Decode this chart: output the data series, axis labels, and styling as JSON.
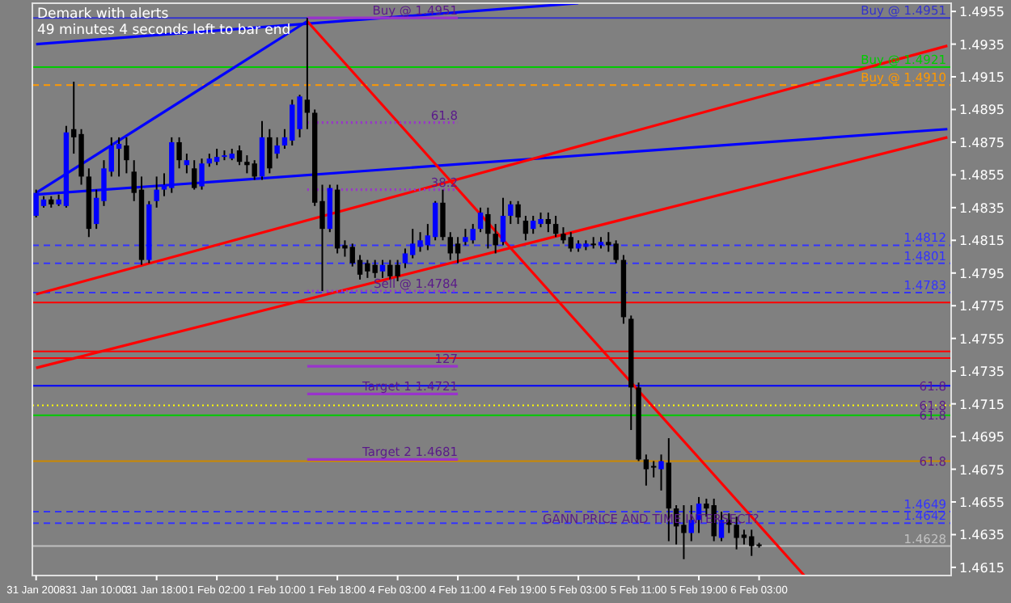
{
  "chart_data": {
    "type": "candlestick",
    "annotations": [
      "Demark with alerts",
      "49 minutes 4 seconds left to bar end",
      {
        "text": "Buy @ 1.4951",
        "x": "4 Feb 11:00",
        "y": 1.4951
      },
      {
        "text": "61.8",
        "x": "4 Feb 11:00",
        "y": 1.4887
      },
      {
        "text": "38.2",
        "x": "4 Feb 11:00",
        "y": 1.4846
      },
      {
        "text": "Sell @ 1.4784",
        "x": "4 Feb 11:00",
        "y": 1.4784
      },
      {
        "text": "127",
        "x": "4 Feb 11:00",
        "y": 1.4738
      },
      {
        "text": "Target 1   1.4721",
        "x": "4 Feb 11:00",
        "y": 1.4721
      },
      {
        "text": "Target 2   1.4681",
        "x": "4 Feb 11:00",
        "y": 1.4681
      },
      {
        "text": "61.8",
        "y": 1.4726
      },
      {
        "text": "61.8",
        "y": 1.4714
      },
      {
        "text": "61.8",
        "y": 1.4708
      },
      {
        "text": "61.8",
        "y": 1.468
      },
      {
        "text": "GANN PRICE AND TIME INTERSECT?",
        "x": "6 Feb 03:00",
        "y": 1.464
      }
    ],
    "categories": [
      "31 Jan 2008",
      null,
      null,
      null,
      null,
      null,
      null,
      null,
      "31 Jan 10:00",
      null,
      null,
      null,
      null,
      null,
      null,
      null,
      "31 Jan 18:00",
      null,
      null,
      null,
      null,
      null,
      null,
      null,
      "1 Feb 02:00",
      null,
      null,
      null,
      null,
      null,
      null,
      null,
      "1 Feb 10:00",
      null,
      null,
      null,
      null,
      null,
      null,
      null,
      "1 Feb 18:00",
      null,
      null,
      null,
      null,
      null,
      null,
      null,
      "4 Feb 03:00",
      null,
      null,
      null,
      null,
      null,
      null,
      null,
      "4 Feb 11:00",
      null,
      null,
      null,
      null,
      null,
      null,
      null,
      "4 Feb 19:00",
      null,
      null,
      null,
      null,
      null,
      null,
      null,
      "5 Feb 03:00",
      null,
      null,
      null,
      null,
      null,
      null,
      null,
      "5 Feb 11:00",
      null,
      null,
      null,
      null,
      null,
      null,
      null,
      "5 Feb 19:00",
      null,
      null,
      null,
      null,
      null,
      null,
      null,
      "6 Feb 03:00",
      null,
      null,
      null,
      null,
      null,
      null,
      null,
      null,
      null,
      null,
      null,
      null,
      null,
      null,
      null,
      null,
      null,
      null,
      null,
      null,
      null,
      null,
      null,
      null,
      null
    ],
    "ohlc": [
      [
        1.483,
        1.4846,
        1.4829,
        1.4844
      ],
      [
        1.4836,
        1.4842,
        1.4835,
        1.484
      ],
      [
        1.484,
        1.4842,
        1.4835,
        1.4837
      ],
      [
        1.4837,
        1.4843,
        1.4836,
        1.484
      ],
      [
        1.4836,
        1.4885,
        1.4835,
        1.4881
      ],
      [
        1.4883,
        1.4912,
        1.4868,
        1.4878
      ],
      [
        1.488,
        1.4883,
        1.4849,
        1.4854
      ],
      [
        1.4854,
        1.4859,
        1.4817,
        1.4822
      ],
      [
        1.4825,
        1.4846,
        1.4822,
        1.4841
      ],
      [
        1.4839,
        1.4864,
        1.4836,
        1.4859
      ],
      [
        1.4857,
        1.4878,
        1.4854,
        1.4873
      ],
      [
        1.4871,
        1.4878,
        1.4854,
        1.4874
      ],
      [
        1.4873,
        1.4878,
        1.4856,
        1.4864
      ],
      [
        1.4857,
        1.4864,
        1.4839,
        1.4844
      ],
      [
        1.4846,
        1.4854,
        1.48,
        1.4803
      ],
      [
        1.4803,
        1.4839,
        1.4801,
        1.4837
      ],
      [
        1.4839,
        1.4854,
        1.4835,
        1.4846
      ],
      [
        1.4846,
        1.4856,
        1.4842,
        1.4849
      ],
      [
        1.4847,
        1.4878,
        1.4844,
        1.4875
      ],
      [
        1.4875,
        1.4878,
        1.4859,
        1.4864
      ],
      [
        1.4861,
        1.4868,
        1.4856,
        1.4864
      ],
      [
        1.4859,
        1.4864,
        1.4846,
        1.4847
      ],
      [
        1.4848,
        1.4865,
        1.4846,
        1.4862
      ],
      [
        1.4862,
        1.4868,
        1.486,
        1.4865
      ],
      [
        1.4863,
        1.4871,
        1.4861,
        1.4866
      ],
      [
        1.4866,
        1.487,
        1.4864,
        1.4867
      ],
      [
        1.4865,
        1.4871,
        1.4864,
        1.4868
      ],
      [
        1.487,
        1.4873,
        1.4861,
        1.4863
      ],
      [
        1.4863,
        1.4867,
        1.4856,
        1.4861
      ],
      [
        1.4862,
        1.4864,
        1.4852,
        1.4854
      ],
      [
        1.4854,
        1.4888,
        1.4852,
        1.4878
      ],
      [
        1.4878,
        1.4883,
        1.4856,
        1.4859
      ],
      [
        1.4868,
        1.4878,
        1.4865,
        1.4873
      ],
      [
        1.4873,
        1.4883,
        1.4871,
        1.4878
      ],
      [
        1.4876,
        1.4901,
        1.4873,
        1.4898
      ],
      [
        1.4883,
        1.4904,
        1.4878,
        1.4903
      ],
      [
        1.4901,
        1.4951,
        1.4883,
        1.4893
      ],
      [
        1.4893,
        1.4895,
        1.4836,
        1.4838
      ],
      [
        1.4839,
        1.4849,
        1.4784,
        1.4822
      ],
      [
        1.4822,
        1.4849,
        1.482,
        1.4847
      ],
      [
        1.4846,
        1.4849,
        1.4807,
        1.481
      ],
      [
        1.4812,
        1.4815,
        1.4805,
        1.481
      ],
      [
        1.4811,
        1.4813,
        1.4799,
        1.4801
      ],
      [
        1.4803,
        1.4806,
        1.4791,
        1.4794
      ],
      [
        1.4801,
        1.4803,
        1.4792,
        1.4796
      ],
      [
        1.48,
        1.4803,
        1.4792,
        1.4795
      ],
      [
        1.4796,
        1.4803,
        1.4792,
        1.48
      ],
      [
        1.48,
        1.4803,
        1.4791,
        1.4793
      ],
      [
        1.48,
        1.4803,
        1.479,
        1.4793
      ],
      [
        1.4801,
        1.481,
        1.4798,
        1.4807
      ],
      [
        1.4806,
        1.4822,
        1.4804,
        1.4813
      ],
      [
        1.4811,
        1.482,
        1.4808,
        1.4815
      ],
      [
        1.4812,
        1.4825,
        1.4809,
        1.4818
      ],
      [
        1.4817,
        1.4839,
        1.4815,
        1.4838
      ],
      [
        1.4838,
        1.4846,
        1.4815,
        1.4817
      ],
      [
        1.4817,
        1.482,
        1.4803,
        1.4807
      ],
      [
        1.4813,
        1.4817,
        1.4801,
        1.4807
      ],
      [
        1.4814,
        1.4822,
        1.4812,
        1.4817
      ],
      [
        1.4815,
        1.4825,
        1.4813,
        1.4822
      ],
      [
        1.4822,
        1.4835,
        1.482,
        1.4832
      ],
      [
        1.4831,
        1.4835,
        1.481,
        1.4819
      ],
      [
        1.4819,
        1.4825,
        1.4807,
        1.4812
      ],
      [
        1.4814,
        1.4841,
        1.4812,
        1.483
      ],
      [
        1.483,
        1.4839,
        1.4825,
        1.4837
      ],
      [
        1.4837,
        1.4839,
        1.4825,
        1.4829
      ],
      [
        1.4827,
        1.483,
        1.4815,
        1.4819
      ],
      [
        1.4822,
        1.483,
        1.4819,
        1.4827
      ],
      [
        1.4825,
        1.4832,
        1.4823,
        1.4828
      ],
      [
        1.4828,
        1.4832,
        1.482,
        1.4825
      ],
      [
        1.4825,
        1.483,
        1.4817,
        1.4819
      ],
      [
        1.4819,
        1.4823,
        1.4813,
        1.4815
      ],
      [
        1.4817,
        1.482,
        1.4808,
        1.481
      ],
      [
        1.481,
        1.4815,
        1.4808,
        1.4813
      ],
      [
        1.4811,
        1.4815,
        1.4809,
        1.4813
      ],
      [
        1.4813,
        1.4817,
        1.481,
        1.4812
      ],
      [
        1.4812,
        1.4817,
        1.481,
        1.4814
      ],
      [
        1.4814,
        1.482,
        1.4808,
        1.4812
      ],
      [
        1.4813,
        1.4815,
        1.4801,
        1.4803
      ],
      [
        1.4803,
        1.4806,
        1.4764,
        1.4768
      ],
      [
        1.4767,
        1.4769,
        1.4699,
        1.4725
      ],
      [
        1.4725,
        1.4728,
        1.468,
        1.4681
      ],
      [
        1.4681,
        1.4684,
        1.4665,
        1.4675
      ],
      [
        1.4677,
        1.468,
        1.467,
        1.4676
      ],
      [
        1.4675,
        1.4684,
        1.4662,
        1.468
      ],
      [
        1.4679,
        1.4694,
        1.4631,
        1.4651
      ],
      [
        1.4651,
        1.4653,
        1.4629,
        1.464
      ],
      [
        1.4641,
        1.4653,
        1.462,
        1.4636
      ],
      [
        1.4636,
        1.4653,
        1.4631,
        1.4644
      ],
      [
        1.4644,
        1.4658,
        1.4636,
        1.4654
      ],
      [
        1.4654,
        1.4657,
        1.4646,
        1.4651
      ],
      [
        1.4653,
        1.4657,
        1.4631,
        1.4634
      ],
      [
        1.4633,
        1.4649,
        1.4631,
        1.4644
      ],
      [
        1.4644,
        1.4648,
        1.4636,
        1.4641
      ],
      [
        1.4641,
        1.4646,
        1.4626,
        1.4633
      ],
      [
        1.4635,
        1.4638,
        1.4629,
        1.4633
      ],
      [
        1.4634,
        1.4638,
        1.4622,
        1.4628
      ],
      [
        1.4629,
        1.463,
        1.4627,
        1.4628
      ],
      null,
      null,
      null,
      null,
      null,
      null,
      null,
      null,
      null,
      null,
      null,
      null,
      null,
      null,
      null,
      null,
      null,
      null,
      null,
      null,
      null,
      null,
      null,
      null,
      null
    ],
    "series": [
      {
        "type": "line",
        "color": "#0000ff",
        "values": [
          1.4935,
          null,
          null,
          null,
          null,
          null,
          null,
          null,
          null,
          null,
          null,
          null,
          null,
          null,
          null,
          null,
          null,
          null,
          null,
          null,
          null,
          null,
          null,
          null,
          null,
          null,
          null,
          null,
          null,
          null,
          null,
          null,
          null,
          null,
          null,
          null,
          null,
          null,
          null,
          null,
          null,
          null,
          null,
          null,
          null,
          null,
          null,
          null,
          null,
          null,
          null,
          null,
          null,
          null,
          null,
          null,
          null,
          null,
          null,
          null,
          null,
          null,
          null,
          null,
          null,
          null,
          null,
          null,
          null,
          null,
          null,
          null,
          1.496,
          null,
          null,
          null,
          null,
          null,
          null,
          null,
          null,
          null,
          null,
          null,
          null,
          null,
          null,
          null,
          null,
          null,
          null,
          null,
          null,
          null,
          null,
          null,
          null,
          null,
          null,
          null,
          null,
          null,
          null,
          null,
          null,
          null,
          null,
          null,
          null,
          null,
          null,
          null,
          null,
          null,
          null,
          null,
          null,
          null,
          null,
          null,
          null,
          null
        ]
      },
      {
        "type": "line",
        "color": "#0000ff",
        "values": [
          1.4844,
          null,
          null,
          null,
          null,
          null,
          null,
          null,
          null,
          null,
          null,
          null,
          null,
          null,
          null,
          null,
          null,
          null,
          null,
          null,
          null,
          null,
          null,
          null,
          null,
          null,
          null,
          null,
          null,
          null,
          null,
          null,
          null,
          null,
          null,
          null,
          1.4949,
          null,
          null,
          null,
          null,
          null,
          null,
          null,
          null,
          null,
          null,
          null,
          null,
          null,
          null,
          null,
          null,
          null,
          null,
          null,
          null,
          null,
          null,
          null,
          null,
          null,
          null,
          null,
          null,
          null,
          null,
          null,
          null,
          null,
          null,
          null,
          null,
          null,
          null,
          null,
          null,
          null,
          null,
          null,
          null,
          null,
          null,
          null,
          null,
          null,
          null,
          null,
          null,
          null,
          null,
          null,
          null,
          null,
          null,
          null,
          null,
          null,
          null,
          null,
          null,
          null,
          null,
          null,
          null,
          null,
          null,
          null,
          null,
          null,
          null,
          null,
          null,
          null,
          null,
          null,
          null,
          null,
          null,
          null,
          null,
          null
        ]
      },
      {
        "type": "line",
        "color": "#0000ff",
        "values": [
          1.4843,
          null,
          null,
          null,
          null,
          null,
          null,
          null,
          null,
          null,
          null,
          null,
          null,
          null,
          null,
          null,
          null,
          null,
          null,
          null,
          null,
          null,
          null,
          null,
          null,
          null,
          null,
          null,
          null,
          null,
          null,
          null,
          null,
          null,
          null,
          null,
          null,
          null,
          null,
          null,
          null,
          null,
          null,
          null,
          null,
          null,
          null,
          null,
          null,
          null,
          null,
          null,
          null,
          null,
          null,
          null,
          null,
          null,
          null,
          null,
          null,
          null,
          null,
          null,
          null,
          null,
          null,
          null,
          null,
          null,
          null,
          null,
          null,
          null,
          null,
          null,
          null,
          null,
          null,
          null,
          null,
          null,
          null,
          null,
          null,
          null,
          null,
          null,
          null,
          null,
          null,
          null,
          null,
          null,
          null,
          null,
          null,
          null,
          null,
          null,
          null,
          null,
          null,
          null,
          null,
          null,
          null,
          null,
          null,
          null,
          null,
          null,
          null,
          null,
          null,
          null,
          null,
          null,
          null,
          null,
          null,
          1.4883
        ]
      },
      {
        "type": "line",
        "color": "#ff0000",
        "values": [
          1.4782,
          null,
          null,
          null,
          null,
          null,
          null,
          null,
          null,
          null,
          null,
          null,
          null,
          null,
          null,
          null,
          null,
          null,
          null,
          null,
          null,
          null,
          null,
          null,
          null,
          null,
          null,
          null,
          null,
          null,
          null,
          null,
          null,
          null,
          null,
          null,
          null,
          null,
          null,
          null,
          null,
          null,
          null,
          null,
          null,
          null,
          null,
          null,
          null,
          null,
          null,
          null,
          null,
          null,
          null,
          null,
          null,
          null,
          null,
          null,
          null,
          null,
          null,
          null,
          null,
          null,
          null,
          null,
          null,
          null,
          null,
          null,
          null,
          null,
          null,
          null,
          null,
          null,
          null,
          null,
          null,
          null,
          null,
          null,
          null,
          null,
          null,
          null,
          null,
          null,
          null,
          null,
          null,
          null,
          null,
          null,
          null,
          null,
          null,
          null,
          null,
          null,
          null,
          null,
          null,
          null,
          null,
          null,
          null,
          null,
          null,
          null,
          null,
          null,
          null,
          null,
          null,
          null,
          null,
          null,
          null,
          1.4934
        ]
      },
      {
        "type": "line",
        "color": "#ff0000",
        "values": [
          1.4737,
          null,
          null,
          null,
          null,
          null,
          null,
          null,
          null,
          null,
          null,
          null,
          null,
          null,
          null,
          null,
          null,
          null,
          null,
          null,
          null,
          null,
          null,
          null,
          null,
          null,
          null,
          null,
          null,
          null,
          null,
          null,
          null,
          null,
          null,
          null,
          null,
          null,
          null,
          null,
          null,
          null,
          null,
          null,
          null,
          null,
          null,
          null,
          null,
          null,
          null,
          null,
          null,
          null,
          null,
          null,
          null,
          null,
          null,
          null,
          null,
          null,
          null,
          null,
          null,
          null,
          null,
          null,
          null,
          null,
          null,
          null,
          null,
          null,
          null,
          null,
          null,
          null,
          null,
          null,
          null,
          null,
          null,
          null,
          null,
          null,
          null,
          null,
          null,
          null,
          null,
          null,
          null,
          null,
          null,
          null,
          null,
          null,
          null,
          null,
          null,
          null,
          null,
          null,
          null,
          null,
          null,
          null,
          null,
          null,
          null,
          null,
          null,
          null,
          null,
          null,
          null,
          null,
          null,
          null,
          null,
          1.4878
        ]
      },
      {
        "type": "line",
        "color": "#ff0000",
        "values": [
          null,
          null,
          null,
          null,
          null,
          null,
          null,
          null,
          null,
          null,
          null,
          null,
          null,
          null,
          null,
          null,
          null,
          null,
          null,
          null,
          null,
          null,
          null,
          null,
          null,
          null,
          null,
          null,
          null,
          null,
          null,
          null,
          null,
          null,
          null,
          null,
          1.4949,
          null,
          null,
          null,
          null,
          null,
          null,
          null,
          null,
          null,
          null,
          null,
          null,
          null,
          null,
          null,
          null,
          null,
          null,
          null,
          null,
          null,
          null,
          null,
          null,
          null,
          null,
          null,
          null,
          null,
          null,
          null,
          null,
          null,
          null,
          null,
          null,
          null,
          null,
          null,
          null,
          null,
          null,
          null,
          null,
          null,
          null,
          null,
          null,
          null,
          null,
          null,
          null,
          null,
          null,
          null,
          null,
          null,
          null,
          null,
          null,
          null,
          null,
          null,
          null,
          null,
          1.461,
          null,
          null,
          null,
          null,
          null,
          null,
          null,
          null,
          null,
          null,
          null,
          null,
          null,
          null,
          null,
          null,
          null,
          null,
          null
        ]
      },
      {
        "type": "line",
        "color": "#9933cc",
        "values": [
          null,
          null,
          null,
          null,
          null,
          null,
          null,
          null,
          null,
          null,
          null,
          null,
          null,
          null,
          null,
          null,
          null,
          null,
          null,
          null,
          null,
          null,
          null,
          null,
          null,
          null,
          null,
          null,
          null,
          null,
          null,
          null,
          null,
          null,
          null,
          null,
          1.4951,
          null,
          null,
          null,
          null,
          null,
          null,
          null,
          null,
          null,
          null,
          null,
          null,
          null,
          null,
          null,
          null,
          null,
          null,
          null,
          1.4951,
          null,
          null,
          null,
          null,
          null,
          null,
          null,
          null,
          null,
          null,
          null,
          null,
          null,
          null,
          null,
          null,
          null,
          null,
          null,
          null,
          null,
          null,
          null,
          null,
          null,
          null,
          null,
          null,
          null,
          null,
          null,
          null,
          null,
          null,
          null,
          null,
          null,
          null,
          null,
          null,
          null,
          null,
          null,
          null,
          null,
          null,
          null,
          null,
          null,
          null,
          null,
          null,
          null,
          null,
          null,
          null,
          null,
          null,
          null,
          null,
          null,
          null,
          null,
          null,
          null
        ]
      },
      {
        "type": "line",
        "color": "#9933cc",
        "line_style": "dotted",
        "values": [
          null,
          null,
          null,
          null,
          null,
          null,
          null,
          null,
          null,
          null,
          null,
          null,
          null,
          null,
          null,
          null,
          null,
          null,
          null,
          null,
          null,
          null,
          null,
          null,
          null,
          null,
          null,
          null,
          null,
          null,
          null,
          null,
          null,
          null,
          null,
          null,
          1.4887,
          null,
          null,
          null,
          null,
          null,
          null,
          null,
          null,
          null,
          null,
          null,
          null,
          null,
          null,
          null,
          null,
          null,
          null,
          null,
          1.4887,
          null,
          null,
          null,
          null,
          null,
          null,
          null,
          null,
          null,
          null,
          null,
          null,
          null,
          null,
          null,
          null,
          null,
          null,
          null,
          null,
          null,
          null,
          null,
          null,
          null,
          null,
          null,
          null,
          null,
          null,
          null,
          null,
          null,
          null,
          null,
          null,
          null,
          null,
          null,
          null,
          null,
          null,
          null,
          null,
          null,
          null,
          null,
          null,
          null,
          null,
          null,
          null,
          null,
          null,
          null,
          null,
          null,
          null,
          null,
          null,
          null,
          null,
          null,
          null,
          null
        ]
      },
      {
        "type": "line",
        "color": "#9933cc",
        "line_style": "dotted",
        "values": [
          null,
          null,
          null,
          null,
          null,
          null,
          null,
          null,
          null,
          null,
          null,
          null,
          null,
          null,
          null,
          null,
          null,
          null,
          null,
          null,
          null,
          null,
          null,
          null,
          null,
          null,
          null,
          null,
          null,
          null,
          null,
          null,
          null,
          null,
          null,
          null,
          1.4846,
          null,
          null,
          null,
          null,
          null,
          null,
          null,
          null,
          null,
          null,
          null,
          null,
          null,
          null,
          null,
          null,
          null,
          null,
          null,
          1.4846,
          null,
          null,
          null,
          null,
          null,
          null,
          null,
          null,
          null,
          null,
          null,
          null,
          null,
          null,
          null,
          null,
          null,
          null,
          null,
          null,
          null,
          null,
          null,
          null,
          null,
          null,
          null,
          null,
          null,
          null,
          null,
          null,
          null,
          null,
          null,
          null,
          null,
          null,
          null,
          null,
          null,
          null,
          null,
          null,
          null,
          null,
          null,
          null,
          null,
          null,
          null,
          null,
          null,
          null,
          null,
          null,
          null,
          null,
          null,
          null,
          null,
          null,
          null,
          null,
          null
        ]
      },
      {
        "type": "line",
        "color": "#9933cc",
        "line_style": "dotted",
        "values": [
          null,
          null,
          null,
          null,
          null,
          null,
          null,
          null,
          null,
          null,
          null,
          null,
          null,
          null,
          null,
          null,
          null,
          null,
          null,
          null,
          null,
          null,
          null,
          null,
          null,
          null,
          null,
          null,
          null,
          null,
          null,
          null,
          null,
          null,
          null,
          null,
          1.4784,
          null,
          null,
          null,
          null,
          null,
          null,
          null,
          null,
          null,
          null,
          null,
          null,
          null,
          null,
          null,
          null,
          null,
          null,
          null,
          1.4784,
          null,
          null,
          null,
          null,
          null,
          null,
          null,
          null,
          null,
          null,
          null,
          null,
          null,
          null,
          null,
          null,
          null,
          null,
          null,
          null,
          null,
          null,
          null,
          null,
          null,
          null,
          null,
          null,
          null,
          null,
          null,
          null,
          null,
          null,
          null,
          null,
          null,
          null,
          null,
          null,
          null,
          null,
          null,
          null,
          null,
          null,
          null,
          null,
          null,
          null,
          null,
          null,
          null,
          null,
          null,
          null,
          null,
          null,
          null,
          null,
          null,
          null,
          null,
          null,
          null
        ]
      },
      {
        "type": "line",
        "color": "#9933cc",
        "values": [
          null,
          null,
          null,
          null,
          null,
          null,
          null,
          null,
          null,
          null,
          null,
          null,
          null,
          null,
          null,
          null,
          null,
          null,
          null,
          null,
          null,
          null,
          null,
          null,
          null,
          null,
          null,
          null,
          null,
          null,
          null,
          null,
          null,
          null,
          null,
          null,
          1.4738,
          null,
          null,
          null,
          null,
          null,
          null,
          null,
          null,
          null,
          null,
          null,
          null,
          null,
          null,
          null,
          null,
          null,
          null,
          null,
          1.4738,
          null,
          null,
          null,
          null,
          null,
          null,
          null,
          null,
          null,
          null,
          null,
          null,
          null,
          null,
          null,
          null,
          null,
          null,
          null,
          null,
          null,
          null,
          null,
          null,
          null,
          null,
          null,
          null,
          null,
          null,
          null,
          null,
          null,
          null,
          null,
          null,
          null,
          null,
          null,
          null,
          null,
          null,
          null,
          null,
          null,
          null,
          null,
          null,
          null,
          null,
          null,
          null,
          null,
          null,
          null,
          null,
          null,
          null,
          null,
          null,
          null,
          null,
          null,
          null,
          null
        ]
      },
      {
        "type": "line",
        "color": "#9933cc",
        "values": [
          null,
          null,
          null,
          null,
          null,
          null,
          null,
          null,
          null,
          null,
          null,
          null,
          null,
          null,
          null,
          null,
          null,
          null,
          null,
          null,
          null,
          null,
          null,
          null,
          null,
          null,
          null,
          null,
          null,
          null,
          null,
          null,
          null,
          null,
          null,
          null,
          1.4721,
          null,
          null,
          null,
          null,
          null,
          null,
          null,
          null,
          null,
          null,
          null,
          null,
          null,
          null,
          null,
          null,
          null,
          null,
          null,
          1.4721,
          null,
          null,
          null,
          null,
          null,
          null,
          null,
          null,
          null,
          null,
          null,
          null,
          null,
          null,
          null,
          null,
          null,
          null,
          null,
          null,
          null,
          null,
          null,
          null,
          null,
          null,
          null,
          null,
          null,
          null,
          null,
          null,
          null,
          null,
          null,
          null,
          null,
          null,
          null,
          null,
          null,
          null,
          null,
          null,
          null,
          null,
          null,
          null,
          null,
          null,
          null,
          null,
          null,
          null,
          null,
          null,
          null,
          null,
          null,
          null,
          null,
          null,
          null,
          null,
          null
        ]
      },
      {
        "type": "line",
        "color": "#9933cc",
        "values": [
          null,
          null,
          null,
          null,
          null,
          null,
          null,
          null,
          null,
          null,
          null,
          null,
          null,
          null,
          null,
          null,
          null,
          null,
          null,
          null,
          null,
          null,
          null,
          null,
          null,
          null,
          null,
          null,
          null,
          null,
          null,
          null,
          null,
          null,
          null,
          null,
          1.4681,
          null,
          null,
          null,
          null,
          null,
          null,
          null,
          null,
          null,
          null,
          null,
          null,
          null,
          null,
          null,
          null,
          null,
          null,
          null,
          1.4681,
          null,
          null,
          null,
          null,
          null,
          null,
          null,
          null,
          null,
          null,
          null,
          null,
          null,
          null,
          null,
          null,
          null,
          null,
          null,
          null,
          null,
          null,
          null,
          null,
          null,
          null,
          null,
          null,
          null,
          null,
          null,
          null,
          null,
          null,
          null,
          null,
          null,
          null,
          null,
          null,
          null,
          null,
          null,
          null,
          null,
          null,
          null,
          null,
          null,
          null,
          null,
          null,
          null,
          null,
          null,
          null,
          null,
          null,
          null,
          null,
          null,
          null,
          null,
          null,
          null
        ]
      }
    ],
    "ref_lines": [
      {
        "axis": "y",
        "value": 1.4951,
        "label": "Buy @ 1.4951",
        "color": "#3333cc"
      },
      {
        "axis": "y",
        "value": 1.4921,
        "label": "Buy @ 1.4921",
        "color": "#00cc00"
      },
      {
        "axis": "y",
        "value": 1.491,
        "label": "Buy @ 1.4910",
        "color": "#ff9900",
        "line_style": "dashed"
      },
      {
        "axis": "y",
        "value": 1.4812,
        "label": "1.4812",
        "color": "#3333ff",
        "line_style": "dashed"
      },
      {
        "axis": "y",
        "value": 1.4801,
        "label": "1.4801",
        "color": "#3333ff",
        "line_style": "dashed"
      },
      {
        "axis": "y",
        "value": 1.4783,
        "label": "1.4783",
        "color": "#3333ff",
        "line_style": "dashed"
      },
      {
        "axis": "y",
        "value": 1.4777,
        "color": "#ff0000"
      },
      {
        "axis": "y",
        "value": 1.4747,
        "color": "#ff0000"
      },
      {
        "axis": "y",
        "value": 1.4743,
        "color": "#ff0000"
      },
      {
        "axis": "y",
        "value": 1.4726,
        "color": "#0000ff"
      },
      {
        "axis": "y",
        "value": 1.4714,
        "color": "#ffff00",
        "line_style": "dotted"
      },
      {
        "axis": "y",
        "value": 1.4708,
        "color": "#00cc00"
      },
      {
        "axis": "y",
        "value": 1.468,
        "color": "#cc8800"
      },
      {
        "axis": "y",
        "value": 1.4649,
        "label": "1.4649",
        "color": "#3333ff",
        "line_style": "dashed"
      },
      {
        "axis": "y",
        "value": 1.4642,
        "label": "1.4642",
        "color": "#3333ff",
        "line_style": "dashed"
      },
      {
        "axis": "y",
        "value": 1.4628,
        "label": "1.4628",
        "color": "#c0c0c0"
      }
    ],
    "ylim": [
      1.461,
      1.496
    ],
    "yticks": [
      1.4955,
      1.4935,
      1.4915,
      1.4895,
      1.4875,
      1.4855,
      1.4835,
      1.4815,
      1.4795,
      1.4775,
      1.4755,
      1.4735,
      1.4715,
      1.4695,
      1.4675,
      1.4655,
      1.4635,
      1.4615
    ],
    "grid": false
  }
}
